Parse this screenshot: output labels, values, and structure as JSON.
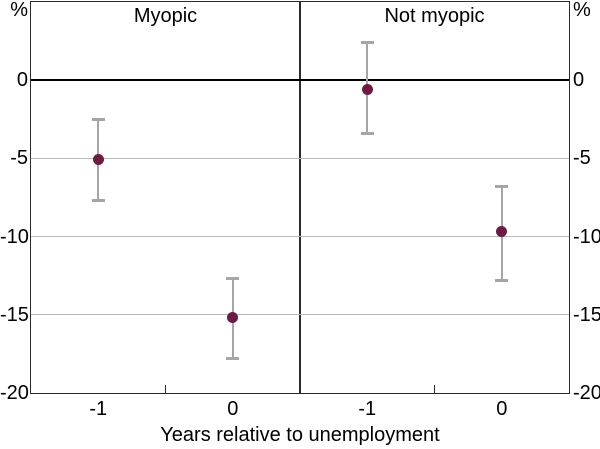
{
  "chart_data": {
    "type": "scatter",
    "subtype": "dot-with-error-bars",
    "unit": "%",
    "xlabel": "Years relative to unemployment",
    "categories": [
      "-1",
      "0"
    ],
    "ylim": [
      -20,
      5
    ],
    "yticks": [
      0,
      -5,
      -10,
      -15,
      -20
    ],
    "gridlines": [
      -5,
      -10,
      -15
    ],
    "zero_line": 0,
    "legend": "none",
    "panels": [
      {
        "title": "Myopic",
        "points": [
          {
            "x": "-1",
            "value": -5.1,
            "ci_low": -7.7,
            "ci_high": -2.5
          },
          {
            "x": "0",
            "value": -15.2,
            "ci_low": -17.8,
            "ci_high": -12.7
          }
        ]
      },
      {
        "title": "Not myopic",
        "points": [
          {
            "x": "-1",
            "value": -0.6,
            "ci_low": -3.4,
            "ci_high": 2.4
          },
          {
            "x": "0",
            "value": -9.7,
            "ci_low": -12.8,
            "ci_high": -6.8
          }
        ]
      }
    ],
    "colors": {
      "point": "#6a1c43",
      "error_bar": "#a6a6a6",
      "gridline": "#bbbbbb",
      "axis": "#2b2b2b",
      "zero_line": "#000000",
      "text": "#000000"
    }
  }
}
